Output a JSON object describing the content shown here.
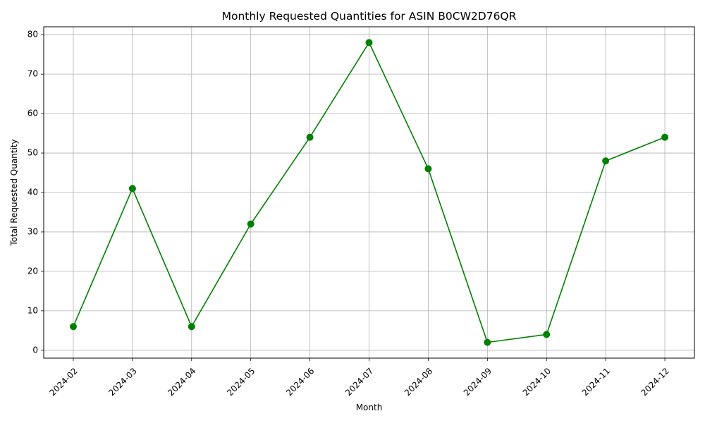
{
  "chart_data": {
    "type": "line",
    "title": "Monthly Requested Quantities for ASIN B0CW2D76QR",
    "xlabel": "Month",
    "ylabel": "Total Requested Quantity",
    "categories": [
      "2024-02",
      "2024-03",
      "2024-04",
      "2024-05",
      "2024-06",
      "2024-07",
      "2024-08",
      "2024-09",
      "2024-10",
      "2024-11",
      "2024-12"
    ],
    "series": [
      {
        "values": [
          6,
          41,
          6,
          32,
          54,
          78,
          46,
          2,
          4,
          48,
          54
        ]
      }
    ],
    "ylim": [
      -2,
      82
    ],
    "yticks": [
      0,
      10,
      20,
      30,
      40,
      50,
      60,
      70,
      80
    ],
    "grid": true,
    "line_color": "#008000",
    "marker": "circle",
    "x_tick_rotation_deg": 45
  }
}
